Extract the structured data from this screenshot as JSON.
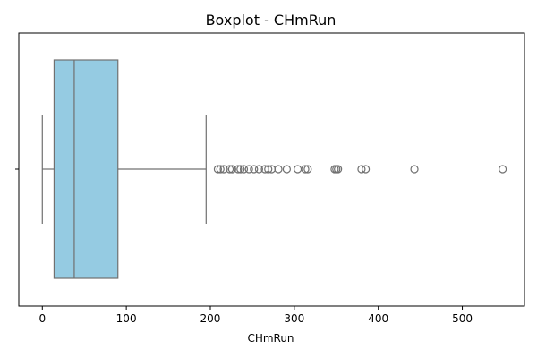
{
  "chart_data": {
    "type": "boxplot",
    "title": "Boxplot - CHmRun",
    "xlabel": "CHmRun",
    "ylabel": "",
    "xlim": [
      -28,
      574
    ],
    "xticks": [
      0,
      100,
      200,
      300,
      400,
      500
    ],
    "xtick_labels": [
      "0",
      "100",
      "200",
      "300",
      "400",
      "500"
    ],
    "box": {
      "whisker_low": 0,
      "q1": 14,
      "median": 38,
      "q3": 90,
      "whisker_high": 195
    },
    "outliers": [
      209,
      212,
      216,
      223,
      226,
      233,
      236,
      240,
      246,
      252,
      258,
      265,
      269,
      273,
      281,
      291,
      304,
      313,
      316,
      348,
      350,
      352,
      380,
      385,
      443,
      548
    ],
    "colors": {
      "box_fill": "#95CBE2",
      "edge": "#707070"
    }
  }
}
